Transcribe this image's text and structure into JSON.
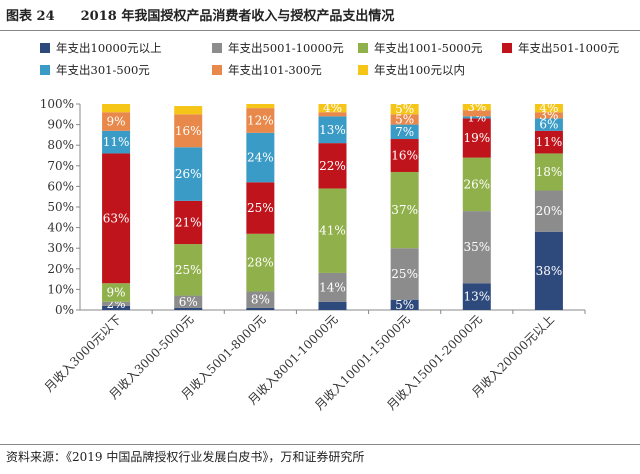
{
  "figure": {
    "title": "图表 24　　2018 年我国授权产品消费者收入与授权产品支出情况",
    "source": "资料来源：《2019 中国品牌授权行业发展白皮书》，万和证券研究所"
  },
  "chart_data": {
    "type": "bar",
    "stacked": true,
    "percent": true,
    "categories": [
      "月收入3000元以下",
      "月收入3000-5000元",
      "月收入5001-8000元",
      "月收入8001-10000元",
      "月收入10001-15000元",
      "月收入15001-20000元",
      "月收入20000元以上"
    ],
    "yticks": [
      "0%",
      "10%",
      "20%",
      "30%",
      "40%",
      "50%",
      "60%",
      "70%",
      "80%",
      "90%",
      "100%"
    ],
    "ylim": [
      0,
      100
    ],
    "legend_position": "top",
    "series": [
      {
        "name": "年支出10000元以上",
        "color": "#2e4a7d",
        "values": [
          2,
          1,
          1,
          4,
          5,
          13,
          38
        ],
        "labels": [
          "",
          "",
          "",
          "",
          "5%",
          "13%",
          "38%"
        ],
        "label_color": "#ffffff"
      },
      {
        "name": "年支出5001-10000元",
        "color": "#8c8c8c",
        "values": [
          2,
          6,
          8,
          14,
          25,
          35,
          20
        ],
        "labels": [
          "2%",
          "6%",
          "8%",
          "14%",
          "25%",
          "35%",
          "20%"
        ],
        "label_color": "#ffffff"
      },
      {
        "name": "年支出1001-5000元",
        "color": "#8fb04a",
        "values": [
          9,
          25,
          28,
          41,
          37,
          26,
          18
        ],
        "labels": [
          "9%",
          "25%",
          "28%",
          "41%",
          "37%",
          "26%",
          "18%"
        ],
        "label_color": "#ffffff"
      },
      {
        "name": "年支出501-1000元",
        "color": "#c0141c",
        "values": [
          63,
          21,
          25,
          22,
          16,
          19,
          11
        ],
        "labels": [
          "63%",
          "21%",
          "25%",
          "22%",
          "16%",
          "19%",
          "11%"
        ],
        "label_color": "#ffffff"
      },
      {
        "name": "年支出301-500元",
        "color": "#3a9bc6",
        "values": [
          11,
          26,
          24,
          13,
          7,
          1,
          6
        ],
        "labels": [
          "11%",
          "26%",
          "24%",
          "13%",
          "7%",
          "1%",
          "6%"
        ],
        "label_color": "#ffffff"
      },
      {
        "name": "年支出101-300元",
        "color": "#e8884a",
        "values": [
          9,
          16,
          12,
          2,
          5,
          3,
          3
        ],
        "labels": [
          "9%",
          "16%",
          "12%",
          "",
          "5%",
          "",
          "3%"
        ],
        "label_color": "#ffffff"
      },
      {
        "name": "年支出100元以内",
        "color": "#f5c518",
        "values": [
          4,
          4,
          2,
          4,
          5,
          3,
          4
        ],
        "labels": [
          "",
          "",
          "",
          "4%",
          "5%",
          "3%",
          "4%"
        ],
        "label_color": "#ffffff"
      }
    ]
  }
}
